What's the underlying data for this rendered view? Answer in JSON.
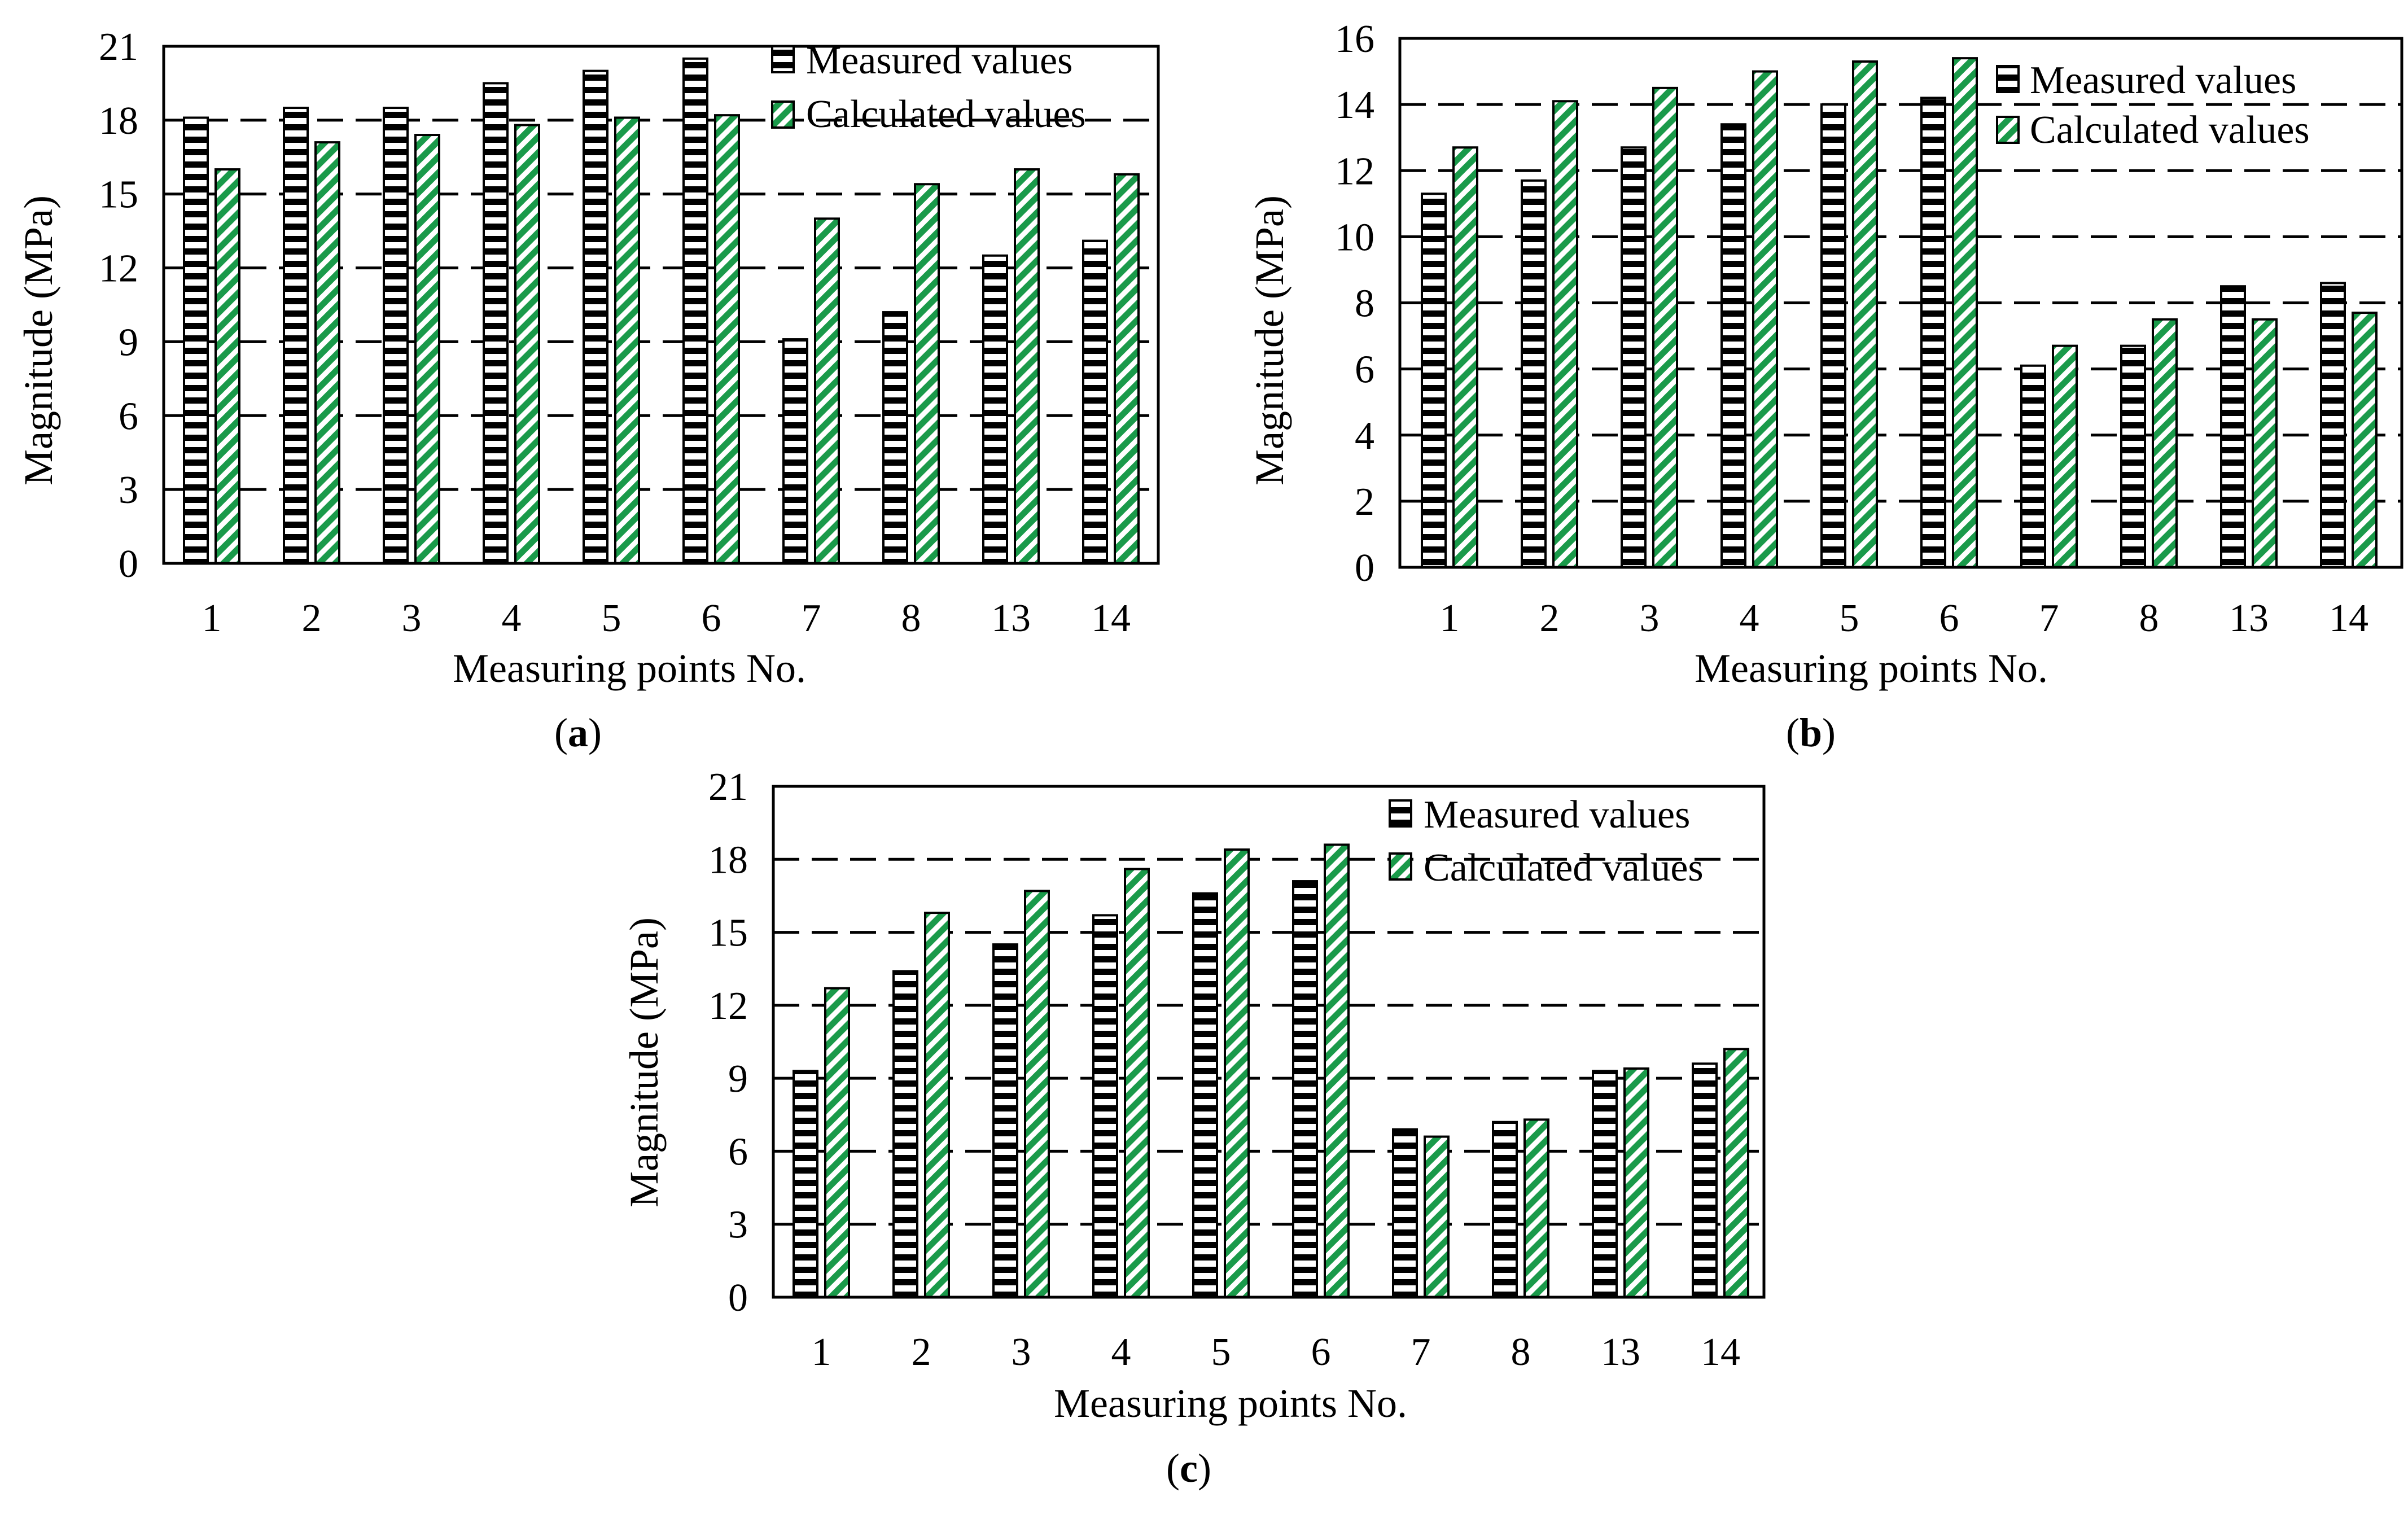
{
  "figure": {
    "panels": [
      "a",
      "b",
      "c"
    ]
  },
  "colors": {
    "measured_fill": "#ffffff",
    "measured_stripe": "#000000",
    "calculated_fill": "#ffffff",
    "calculated_stripe": "#1a9a4a",
    "axis": "#000000",
    "grid": "#000000"
  },
  "chart_data": [
    {
      "type": "bar",
      "panel_label": "a",
      "title": "",
      "xlabel": "Measuring points No.",
      "ylabel": "Magnitude (MPa)",
      "categories": [
        "1",
        "2",
        "3",
        "4",
        "5",
        "6",
        "7",
        "8",
        "13",
        "14"
      ],
      "yticks": [
        "0",
        "3",
        "6",
        "9",
        "12",
        "15",
        "18",
        "21"
      ],
      "ylim": [
        0,
        21
      ],
      "grid": "dashed horizontal",
      "legend_position": "top-right",
      "series": [
        {
          "name": "Measured values",
          "values": [
            18.1,
            18.5,
            18.5,
            19.5,
            20.0,
            20.5,
            9.1,
            10.2,
            12.5,
            13.1
          ]
        },
        {
          "name": "Calculated values",
          "values": [
            16.0,
            17.1,
            17.4,
            17.8,
            18.1,
            18.2,
            14.0,
            15.4,
            16.0,
            15.8
          ]
        }
      ]
    },
    {
      "type": "bar",
      "panel_label": "b",
      "title": "",
      "xlabel": "Measuring points No.",
      "ylabel": "Magnitude (MPa)",
      "categories": [
        "1",
        "2",
        "3",
        "4",
        "5",
        "6",
        "7",
        "8",
        "13",
        "14"
      ],
      "yticks": [
        "0",
        "2",
        "4",
        "6",
        "8",
        "10",
        "12",
        "14",
        "16"
      ],
      "ylim": [
        0,
        16
      ],
      "grid": "dashed horizontal",
      "legend_position": "top-right",
      "series": [
        {
          "name": "Measured values",
          "values": [
            11.3,
            11.7,
            12.7,
            13.4,
            14.0,
            14.2,
            6.1,
            6.7,
            8.5,
            8.6
          ]
        },
        {
          "name": "Calculated values",
          "values": [
            12.7,
            14.1,
            14.5,
            15.0,
            15.3,
            15.4,
            6.7,
            7.5,
            7.5,
            7.7
          ]
        }
      ]
    },
    {
      "type": "bar",
      "panel_label": "c",
      "title": "",
      "xlabel": "Measuring points No.",
      "ylabel": "Magnitude (MPa)",
      "categories": [
        "1",
        "2",
        "3",
        "4",
        "5",
        "6",
        "7",
        "8",
        "13",
        "14"
      ],
      "yticks": [
        "0",
        "3",
        "6",
        "9",
        "12",
        "15",
        "18",
        "21"
      ],
      "ylim": [
        0,
        21
      ],
      "grid": "dashed horizontal",
      "legend_position": "top-right",
      "series": [
        {
          "name": "Measured values",
          "values": [
            9.3,
            13.4,
            14.5,
            15.7,
            16.6,
            17.1,
            6.9,
            7.2,
            9.3,
            9.6
          ]
        },
        {
          "name": "Calculated values",
          "values": [
            12.7,
            15.8,
            16.7,
            17.6,
            18.4,
            18.6,
            6.6,
            7.3,
            9.4,
            10.2
          ]
        }
      ]
    }
  ]
}
